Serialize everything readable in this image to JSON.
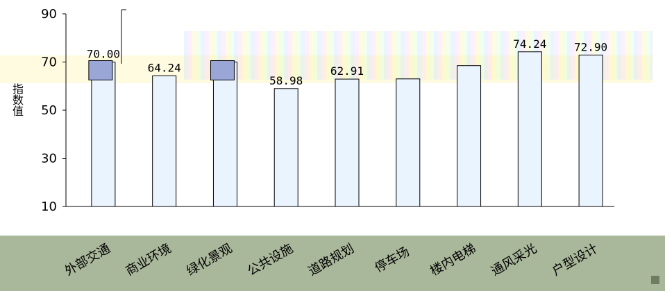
{
  "chart_data": {
    "type": "bar",
    "ylabel": "指数值",
    "y_ticks": [
      10,
      30,
      50,
      70,
      90
    ],
    "ylim": [
      10,
      90
    ],
    "categories": [
      "外部交通",
      "商业环境",
      "绿化景观",
      "公共设施",
      "道路规划",
      "停车场",
      "楼内电梯",
      "通风采光",
      "户型设计"
    ],
    "values": [
      70.0,
      64.24,
      70.0,
      58.98,
      62.91,
      63.0,
      68.5,
      74.24,
      72.9
    ],
    "data_labels": [
      "70.00",
      "64.24",
      "",
      "58.98",
      "62.91",
      "",
      "",
      "74.24",
      "72.90"
    ],
    "category_labels_shown": [
      "外部交通",
      "商业环境",
      "绿化景观",
      "公共设施",
      "道路规划",
      "停车场",
      "楼内电梯",
      "通风采光",
      "户型设计"
    ],
    "bar_fill": "#eaf4ff",
    "highlight_fill": "#9aa6d6",
    "grid": false
  }
}
